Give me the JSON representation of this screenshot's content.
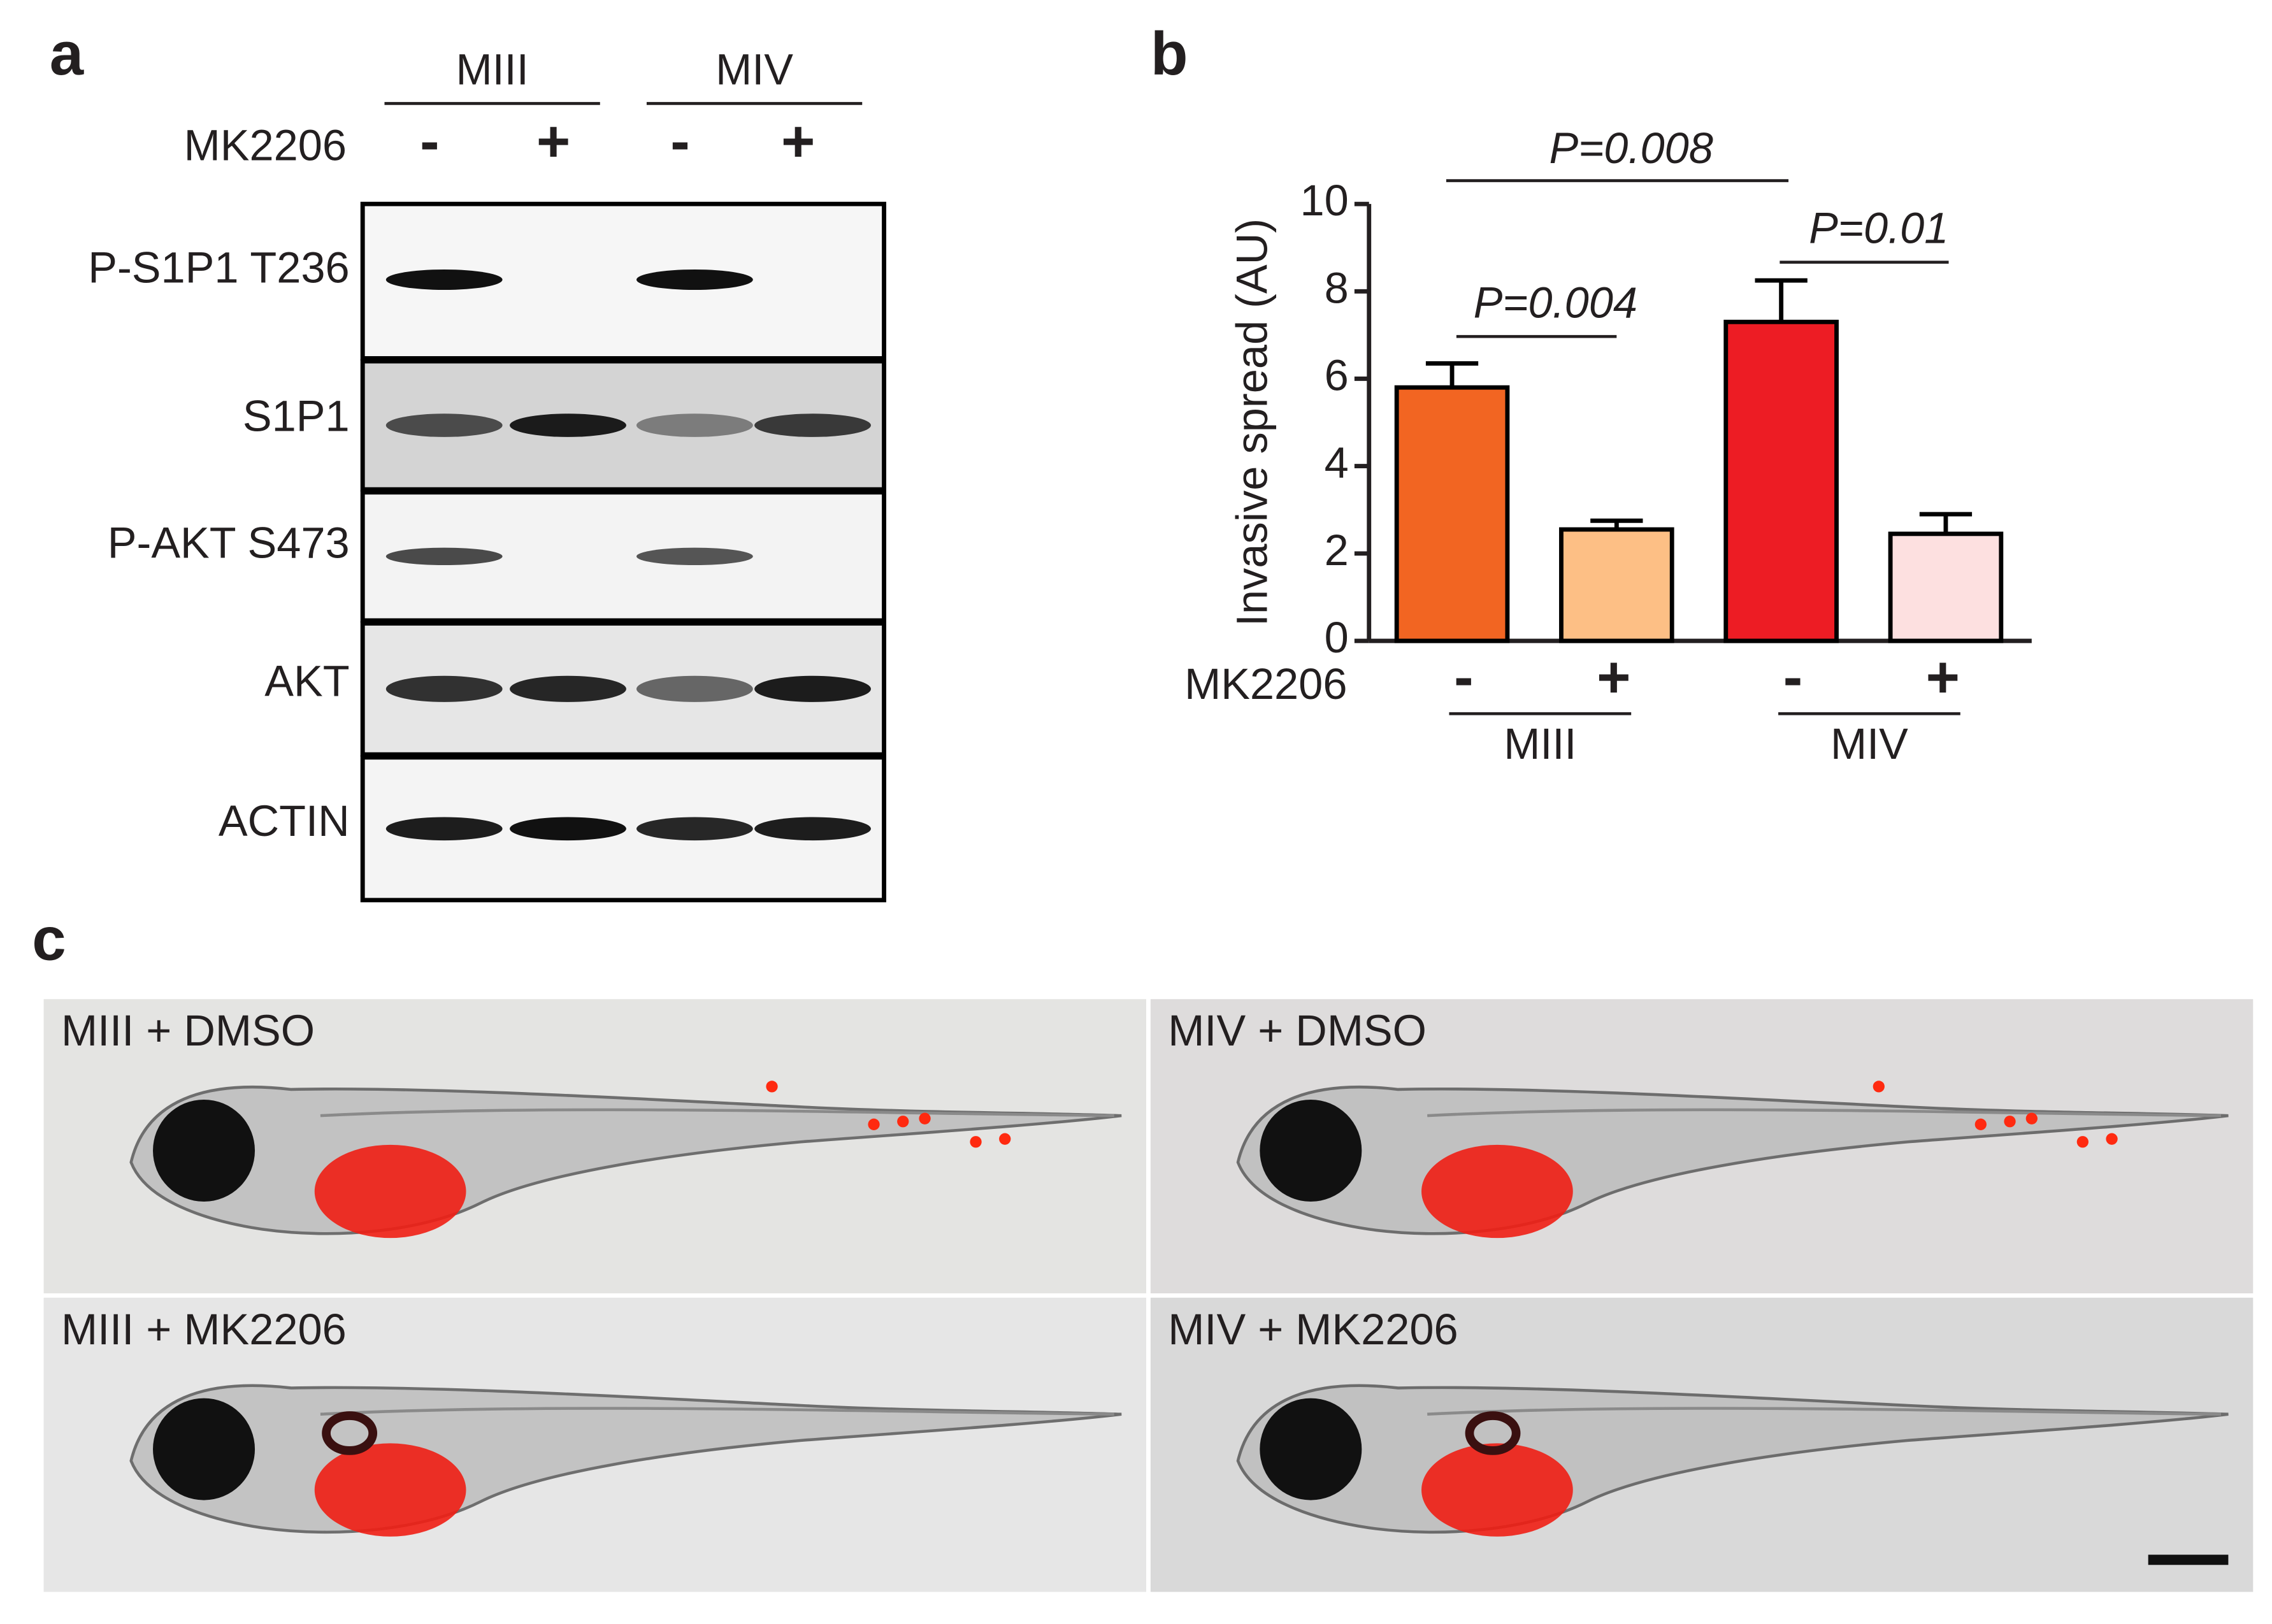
{
  "panel_a": {
    "label": "a",
    "groups": [
      "MIII",
      "MIV"
    ],
    "treatment": "MK2206",
    "signs": [
      "-",
      "+",
      "-",
      "+"
    ],
    "rows": [
      "P-S1P1 T236",
      "S1P1",
      "P-AKT S473",
      "AKT",
      "ACTIN"
    ]
  },
  "chart_data": {
    "type": "bar",
    "label": "b",
    "y_label": "Invasive spread (AU)",
    "x_label": "MK2206",
    "categories": [
      "-",
      "+",
      "-",
      "+"
    ],
    "groups": [
      "MIII",
      "MIV"
    ],
    "values": [
      5.8,
      2.55,
      7.3,
      2.45
    ],
    "errors": [
      0.55,
      0.2,
      0.95,
      0.45
    ],
    "colors": [
      "#f26522",
      "#fdbf85",
      "#ed1c24",
      "#fde0e0"
    ],
    "ylim": [
      0,
      10
    ],
    "yticks": [
      0,
      2,
      4,
      6,
      8,
      10
    ],
    "annotations": [
      "P=0.008",
      "P=0.004",
      "P=0.01"
    ]
  },
  "panel_c": {
    "label": "c",
    "images": [
      "MIII + DMSO",
      "MIV + DMSO",
      "MIII + MK2206",
      "MIV + MK2206"
    ]
  }
}
